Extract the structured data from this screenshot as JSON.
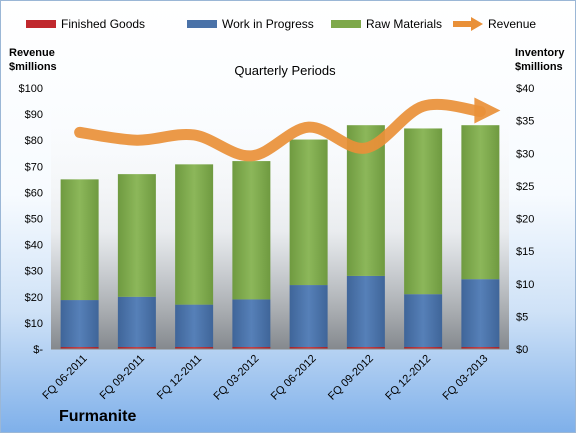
{
  "chart_data": {
    "type": "bar",
    "stacked": true,
    "title": "Quarterly Periods",
    "brand": "Furmanite",
    "categories": [
      "FQ 06-2011",
      "FQ 09-2011",
      "FQ 12-2011",
      "FQ 03-2012",
      "FQ 06-2012",
      "FQ 09-2012",
      "FQ 12-2012",
      "FQ 03-2013"
    ],
    "series": [
      {
        "name": "Finished Goods",
        "axis": "right",
        "color": "#c0282d",
        "values": [
          0.3,
          0.3,
          0.3,
          0.3,
          0.3,
          0.3,
          0.3,
          0.3
        ]
      },
      {
        "name": "Work in Progress",
        "axis": "right",
        "color": "#4a72a8",
        "values": [
          7.2,
          7.7,
          6.5,
          7.3,
          9.5,
          10.9,
          8.1,
          10.4
        ]
      },
      {
        "name": "Raw Materials",
        "axis": "right",
        "color": "#7ea84a",
        "values": [
          18.5,
          18.8,
          21.5,
          21.2,
          22.3,
          23.1,
          25.4,
          23.6
        ]
      },
      {
        "name": "Revenue",
        "axis": "left",
        "type": "line",
        "color": "#e99038",
        "values": [
          83,
          80,
          82,
          74,
          85,
          77,
          93,
          91
        ]
      }
    ],
    "left_axis": {
      "label_line1": "Revenue",
      "label_line2": "$millions",
      "ylim": [
        0,
        100
      ],
      "ticks": [
        "$-",
        "$10",
        "$20",
        "$30",
        "$40",
        "$50",
        "$60",
        "$70",
        "$80",
        "$90",
        "$100"
      ]
    },
    "right_axis": {
      "label_line1": "Inventory",
      "label_line2": "$millions",
      "ylim": [
        0,
        40
      ],
      "ticks": [
        "$0",
        "$5",
        "$10",
        "$15",
        "$20",
        "$25",
        "$30",
        "$35",
        "$40"
      ]
    },
    "legend_position": "top",
    "grid": false
  }
}
